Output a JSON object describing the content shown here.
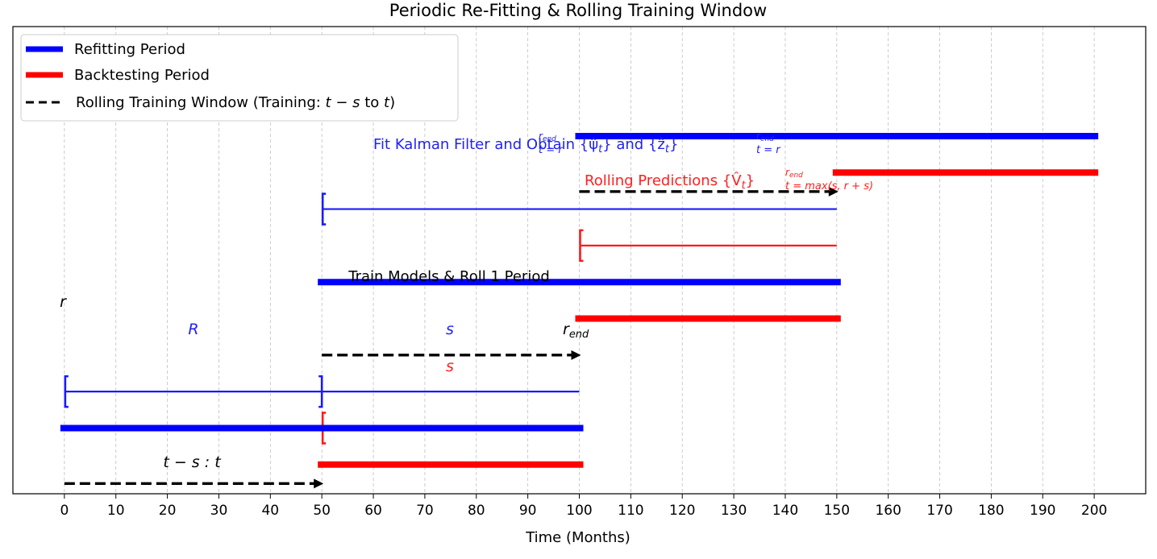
{
  "chart_data": {
    "type": "timeline",
    "title": "Periodic Re-Fitting & Rolling Training Window",
    "xlabel": "Time (Months)",
    "ylabel": "",
    "xlim": [
      -10,
      210
    ],
    "ylim": [
      0.55,
      3.75
    ],
    "grid": "x-dashed",
    "xticks": [
      0,
      10,
      20,
      30,
      40,
      50,
      60,
      70,
      80,
      90,
      100,
      110,
      120,
      130,
      140,
      150,
      160,
      170,
      180,
      190,
      200
    ],
    "legend": {
      "placement": "upper-left",
      "entries": [
        {
          "label": "Refitting Period",
          "color": "#0000ff",
          "style": "solid-thick"
        },
        {
          "label": "Backtesting Period",
          "color": "#ff0000",
          "style": "solid-thick"
        },
        {
          "label": "Rolling Training Window (Training: t − s to t)",
          "color": "#000000",
          "style": "dashed"
        }
      ]
    },
    "colors": {
      "refit": "#0000ff",
      "backtest": "#ff0000",
      "window": "#000000",
      "annotate_blue": "#2222ee",
      "annotate_red": "#ff2020"
    },
    "refitting_periods": [
      {
        "start": 0,
        "end": 100,
        "y": 1.0
      },
      {
        "start": 50,
        "end": 150,
        "y": 2.0
      },
      {
        "start": 100,
        "end": 200,
        "y": 3.0
      }
    ],
    "backtesting_periods": [
      {
        "start": 50,
        "end": 100,
        "y": 0.75
      },
      {
        "start": 100,
        "end": 150,
        "y": 1.75
      },
      {
        "start": 150,
        "end": 200,
        "y": 2.75
      }
    ],
    "rolling_windows": [
      {
        "start": 0,
        "end": 50,
        "y": 0.62,
        "label": "t − s : t"
      },
      {
        "start": 50,
        "end": 100,
        "y": 1.5,
        "label": "Train Models & Roll 1 Period"
      },
      {
        "start": 100,
        "end": 150,
        "y": 2.62,
        "label": ""
      }
    ],
    "brackets": [
      {
        "start": 0,
        "end": 100,
        "y": 1.25,
        "color": "blue",
        "labels": [
          "R",
          "s"
        ]
      },
      {
        "start": 50,
        "end": 100,
        "y": 1.0,
        "color": "red",
        "labels": [
          "s"
        ]
      },
      {
        "start": 50,
        "end": 150,
        "y": 2.5,
        "color": "blue",
        "labels": []
      },
      {
        "start": 100,
        "end": 150,
        "y": 2.25,
        "color": "red",
        "labels": []
      }
    ],
    "annotations": {
      "r": "r",
      "r_end": "r",
      "r_end_sub": "end",
      "R": "R",
      "s_blue": "s",
      "s_red": "s",
      "t_minus_s": "t − s : t",
      "train_roll": "Train Models & Roll 1 Period",
      "fit_kalman": "Fit Kalman Filter and Obtain {ψ̂",
      "fit_kalman_mid": "} and {ẑ",
      "fit_kalman_end": "}",
      "sub_t_eq_r": "t = r",
      "sup_r_end": "r",
      "sup_end": "end",
      "sub_t": "t",
      "rolling_pred": "Rolling Predictions {V̂",
      "rolling_pred_end": "}",
      "sub_max": "t = max(s, r + s)"
    }
  }
}
